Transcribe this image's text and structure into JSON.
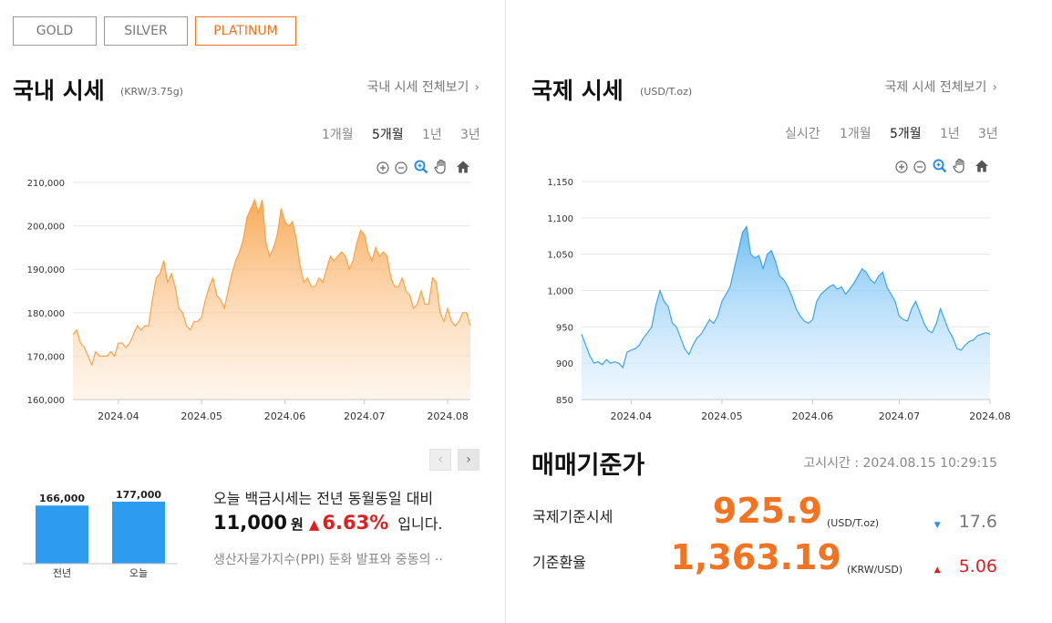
{
  "tabs": [
    {
      "label": "GOLD",
      "active": false
    },
    {
      "label": "SILVER",
      "active": false
    },
    {
      "label": "PLATINUM",
      "active": true
    }
  ],
  "domestic": {
    "title": "국내 시세",
    "unit": "(KRW/3.75g)",
    "more_link": "국내 시세 전체보기",
    "periods": [
      "1개월",
      "5개월",
      "1년",
      "3년"
    ],
    "selected_period": "5개월"
  },
  "international": {
    "title": "국제 시세",
    "unit": "(USD/T.oz)",
    "more_link": "국제 시세 전체보기",
    "periods": [
      "실시간",
      "1개월",
      "5개월",
      "1년",
      "3년"
    ],
    "selected_period": "5개월"
  },
  "chart_tools": [
    "zoom-in-icon",
    "zoom-out-icon",
    "magnifier-icon",
    "pan-hand-icon",
    "home-icon"
  ],
  "chart_data": [
    {
      "type": "area",
      "color": "#f7a34a",
      "ylim": [
        160000,
        210000
      ],
      "yticks": [
        "210,000",
        "200,000",
        "190,000",
        "180,000",
        "170,000",
        "160,000"
      ],
      "ytick_values": [
        210000,
        200000,
        190000,
        180000,
        170000,
        160000
      ],
      "xticks": [
        "2024.04",
        "2024.05",
        "2024.06",
        "2024.07",
        "2024.08"
      ],
      "xtick_index": [
        12,
        34,
        56,
        77,
        99
      ],
      "values": [
        175000,
        176000,
        173000,
        172000,
        170000,
        168000,
        171000,
        170000,
        170000,
        170000,
        171000,
        170000,
        173000,
        173000,
        172000,
        173000,
        175000,
        177000,
        176000,
        177000,
        177000,
        183000,
        188000,
        189000,
        192000,
        187000,
        189000,
        186000,
        181000,
        180000,
        177000,
        176000,
        178000,
        178000,
        179000,
        183000,
        186000,
        188000,
        184000,
        183000,
        181000,
        185000,
        189000,
        192000,
        194000,
        197000,
        202000,
        204000,
        206000,
        203000,
        206000,
        196000,
        193000,
        195000,
        198000,
        204000,
        201000,
        200000,
        201000,
        197000,
        191000,
        187000,
        188000,
        186000,
        186000,
        188000,
        187000,
        190000,
        193000,
        192000,
        193000,
        194000,
        193000,
        190000,
        192000,
        196000,
        199000,
        198000,
        194000,
        192000,
        195000,
        193000,
        194000,
        193000,
        188000,
        186000,
        186000,
        188000,
        185000,
        184000,
        181000,
        182000,
        185000,
        182000,
        182000,
        188000,
        187000,
        180000,
        178000,
        181000,
        178000,
        177000,
        178000,
        180000,
        180000,
        177000
      ]
    },
    {
      "type": "area",
      "color": "#3ea3e8",
      "ylim": [
        850,
        1150
      ],
      "yticks": [
        "1,150",
        "1,100",
        "1,050",
        "1,000",
        "950",
        "900",
        "850"
      ],
      "ytick_values": [
        1150,
        1100,
        1050,
        1000,
        950,
        900,
        850
      ],
      "xticks": [
        "2024.04",
        "2024.05",
        "2024.06",
        "2024.07",
        "2024.08"
      ],
      "xtick_index": [
        12,
        34,
        56,
        77,
        99
      ],
      "values": [
        940,
        925,
        910,
        900,
        902,
        898,
        905,
        900,
        902,
        900,
        894,
        915,
        918,
        920,
        925,
        935,
        942,
        950,
        980,
        1000,
        985,
        978,
        955,
        950,
        935,
        920,
        912,
        925,
        935,
        940,
        950,
        960,
        955,
        965,
        985,
        995,
        1005,
        1030,
        1055,
        1080,
        1088,
        1050,
        1045,
        1048,
        1030,
        1050,
        1055,
        1040,
        1020,
        1015,
        1005,
        992,
        975,
        965,
        958,
        955,
        960,
        985,
        995,
        1000,
        1005,
        1008,
        1002,
        1005,
        995,
        1002,
        1010,
        1020,
        1030,
        1025,
        1015,
        1010,
        1020,
        1025,
        1005,
        995,
        985,
        965,
        960,
        958,
        975,
        985,
        970,
        955,
        945,
        942,
        955,
        975,
        960,
        945,
        935,
        920,
        918,
        925,
        930,
        932,
        938,
        940,
        942,
        940
      ]
    }
  ],
  "mini_chart": {
    "type": "bar",
    "categories": [
      "전년",
      "오늘"
    ],
    "values": [
      166000,
      177000
    ],
    "value_labels": [
      "166,000",
      "177,000"
    ],
    "color": "#2d9bf0"
  },
  "summary": {
    "line1": "오늘 백금시세는 전년 동월동일 대비",
    "amount": "11,000",
    "won": "원",
    "up_arrow": "▲",
    "pct": "6.63%",
    "tail": "입니다.",
    "news": "생산자물가지수(PPI) 둔화 발표와 중동의 ··"
  },
  "standard": {
    "title": "매매기준가",
    "notice": "고시시간 : 2024.08.15 10:29:15",
    "rows": [
      {
        "label": "국제기준시세",
        "value": "925.9",
        "unit": "(USD/T.oz)",
        "arrow": "▼",
        "change": "17.6",
        "direction": "down"
      },
      {
        "label": "기준환율",
        "value": "1,363.19",
        "unit": "(KRW/USD)",
        "arrow": "▲",
        "change": "5.06",
        "direction": "up"
      }
    ]
  }
}
